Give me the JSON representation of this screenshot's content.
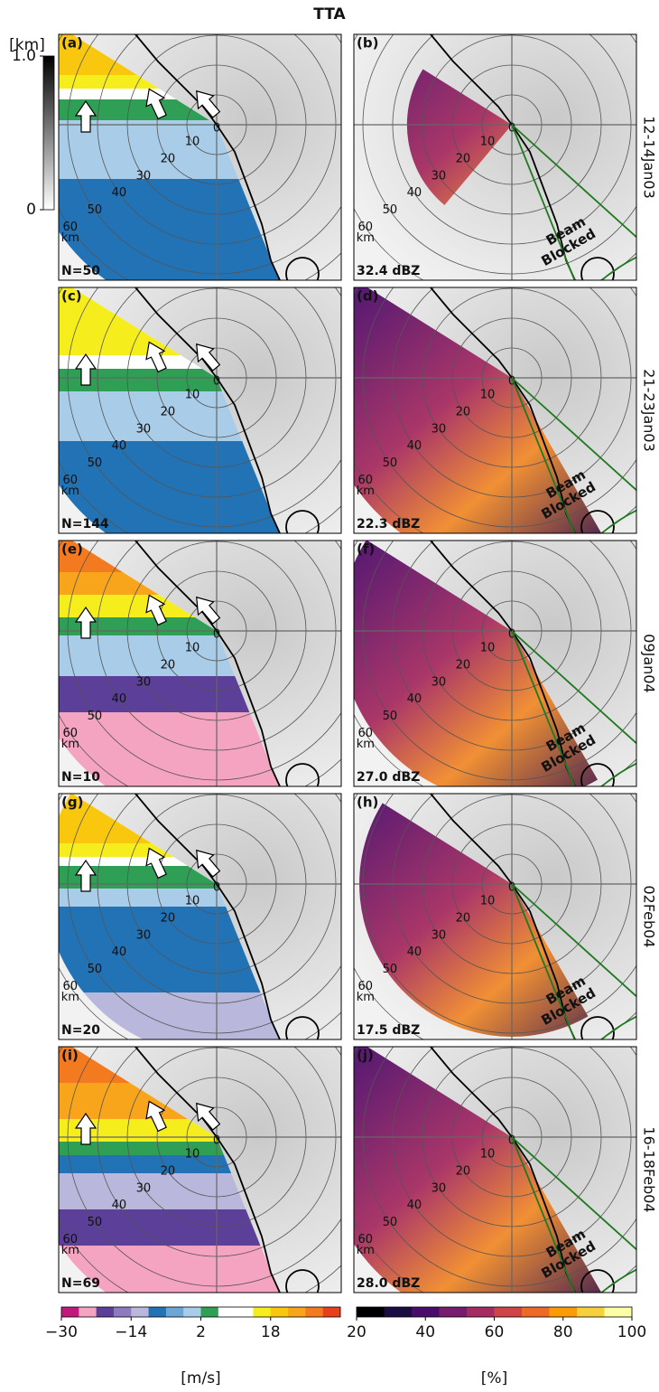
{
  "title": "TTA",
  "elevation_colorbar": {
    "unit": "[km]",
    "lim": [
      0,
      1
    ],
    "ticks": [
      {
        "value": 1.0,
        "label": "1.0"
      },
      0
    ]
  },
  "rows": [
    {
      "label": "12-14Jan03",
      "panels": [
        {
          "label": "(a)",
          "stat": "N=50"
        },
        {
          "label": "(b)",
          "stat": "32.4 dBZ"
        }
      ]
    },
    {
      "label": "21-23Jan03",
      "panels": [
        {
          "label": "(c)",
          "stat": "N=144"
        },
        {
          "label": "(d)",
          "stat": "22.3 dBZ"
        }
      ]
    },
    {
      "label": "09Jan04",
      "panels": [
        {
          "label": "(e)",
          "stat": "N=10"
        },
        {
          "label": "(f)",
          "stat": "27.0 dBZ"
        }
      ]
    },
    {
      "label": "02Feb04",
      "panels": [
        {
          "label": "(g)",
          "stat": "N=20"
        },
        {
          "label": "(h)",
          "stat": "17.5 dBZ"
        }
      ]
    },
    {
      "label": "16-18Feb04",
      "panels": [
        {
          "label": "(i)",
          "stat": "N=69"
        },
        {
          "label": "(j)",
          "stat": "28.0 dBZ"
        }
      ]
    }
  ],
  "range_labels": [
    "0",
    "10",
    "20",
    "30",
    "40",
    "50",
    "60",
    "km"
  ],
  "beam_blocked": [
    "Beam",
    "Blocked"
  ],
  "wind_colorbar": {
    "unit": "[m/s]",
    "lim": [
      -30,
      34
    ],
    "ticks": [
      {
        "value": -30,
        "label": "−30"
      },
      {
        "value": -14,
        "label": "−14"
      },
      2,
      18
    ],
    "colors": [
      "#c2187e",
      "#f4a3c1",
      "#5b3f98",
      "#8c7cbd",
      "#b9b8dc",
      "#2272b6",
      "#6aa6d6",
      "#a9cde8",
      "#2e9f54",
      "#ffffff",
      "#ffffff",
      "#f5ee1c",
      "#f9c80e",
      "#f8a51c",
      "#f37a1f",
      "#e8401c"
    ]
  },
  "percent_colorbar": {
    "unit": "[%]",
    "lim": [
      20,
      100
    ],
    "ticks": [
      20,
      40,
      60,
      80,
      100
    ],
    "colors": [
      "#000004",
      "#1b0c41",
      "#4a0c6b",
      "#781c6d",
      "#a52c60",
      "#cf4446",
      "#ed6925",
      "#fb9b06",
      "#f7d13d",
      "#fcffa4"
    ]
  }
}
